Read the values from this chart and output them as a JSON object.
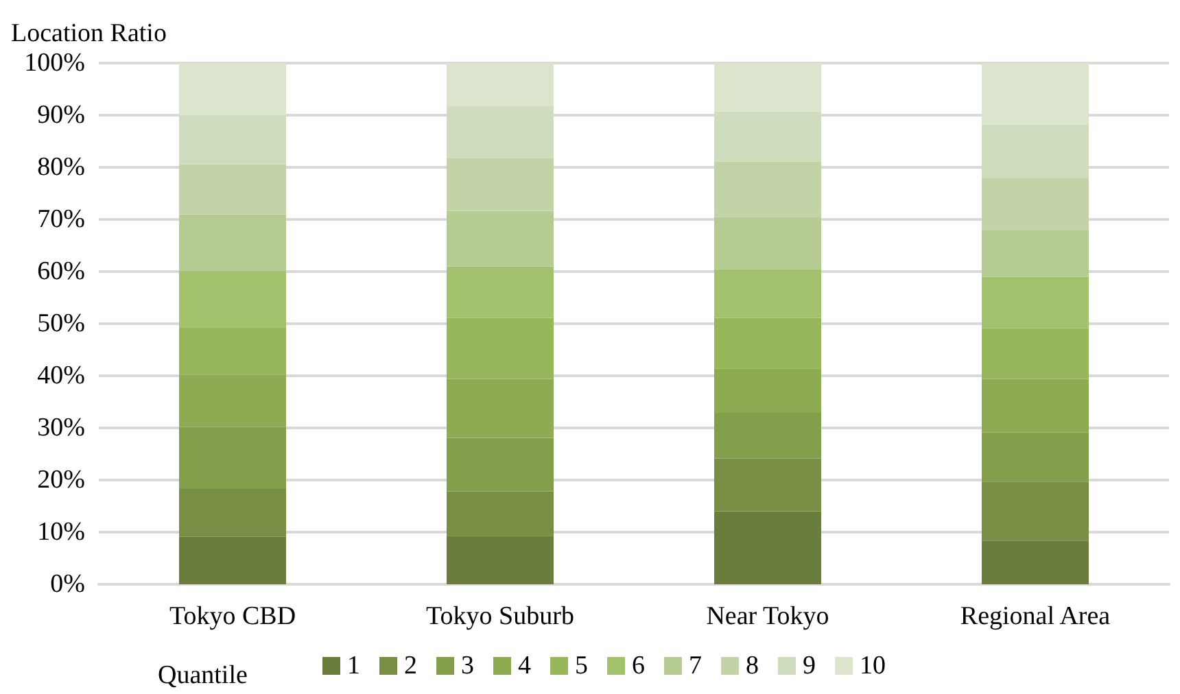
{
  "chart_data": {
    "type": "bar",
    "stacked": true,
    "ylabel": "Location Ratio",
    "legend_title": "Quantile",
    "legend": "bottom",
    "grid": "y",
    "categories": [
      "Tokyo CBD",
      "Tokyo Suburb",
      "Near Tokyo",
      "Regional Area"
    ],
    "ylim": [
      0,
      100
    ],
    "yticks": [
      {
        "value": 0,
        "label": "0%"
      },
      {
        "value": 10,
        "label": "10%"
      },
      {
        "value": 20,
        "label": "20%"
      },
      {
        "value": 30,
        "label": "30%"
      },
      {
        "value": 40,
        "label": "40%"
      },
      {
        "value": 50,
        "label": "50%"
      },
      {
        "value": 60,
        "label": "60%"
      },
      {
        "value": 70,
        "label": "70%"
      },
      {
        "value": 80,
        "label": "80%"
      },
      {
        "value": 90,
        "label": "90%"
      },
      {
        "value": 100,
        "label": "100%"
      }
    ],
    "series": [
      {
        "name": "1",
        "color": "#6a7d3c",
        "values": [
          9.1,
          9.3,
          14.0,
          8.4
        ]
      },
      {
        "name": "2",
        "color": "#788e44",
        "values": [
          9.2,
          8.5,
          10.1,
          11.3
        ]
      },
      {
        "name": "3",
        "color": "#849f4b",
        "values": [
          11.9,
          10.3,
          8.8,
          9.4
        ]
      },
      {
        "name": "4",
        "color": "#8eab52",
        "values": [
          10.0,
          11.3,
          8.5,
          10.3
        ]
      },
      {
        "name": "5",
        "color": "#98b65a",
        "values": [
          9.0,
          11.7,
          9.7,
          9.7
        ]
      },
      {
        "name": "6",
        "color": "#a4c16e",
        "values": [
          11.0,
          9.9,
          9.4,
          9.9
        ]
      },
      {
        "name": "7",
        "color": "#b6cb91",
        "values": [
          10.8,
          10.6,
          10.0,
          9.0
        ]
      },
      {
        "name": "8",
        "color": "#c3d3a7",
        "values": [
          9.6,
          10.2,
          10.6,
          10.0
        ]
      },
      {
        "name": "9",
        "color": "#cfdcbd",
        "values": [
          9.4,
          10.0,
          9.6,
          10.2
        ]
      },
      {
        "name": "10",
        "color": "#dbe5cd",
        "values": [
          10.0,
          8.2,
          9.3,
          11.8
        ]
      }
    ]
  }
}
